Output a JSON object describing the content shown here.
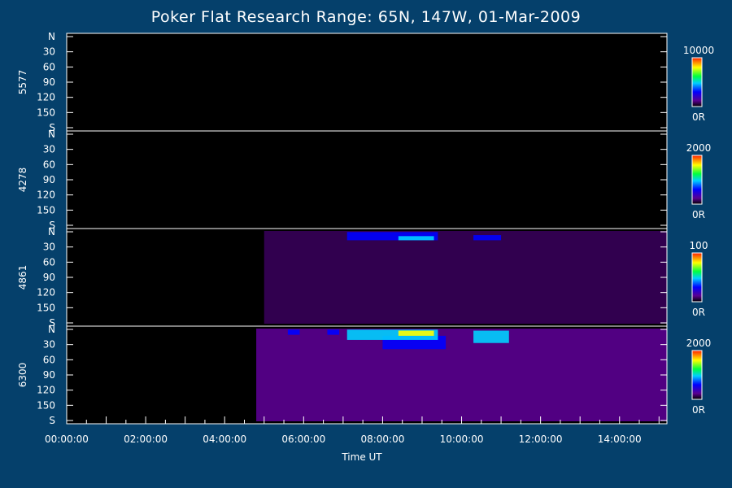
{
  "title": "Poker Flat Research Range: 65N, 147W, 01-Mar-2009",
  "chart_data": {
    "type": "heatmap",
    "title": "Poker Flat Research Range: 65N, 147W, 01-Mar-2009",
    "xlabel": "Time UT",
    "x_tick_labels": [
      "00:00:00",
      "02:00:00",
      "04:00:00",
      "06:00:00",
      "08:00:00",
      "10:00:00",
      "12:00:00",
      "14:00:00"
    ],
    "xlim_hours": [
      0,
      15.2
    ],
    "y_tick_labels": [
      "N",
      "30",
      "60",
      "90",
      "120",
      "150",
      "S"
    ],
    "ylim_deg": [
      0,
      180
    ],
    "panels": [
      {
        "wavelength": "5577",
        "colorbar_max": "10000",
        "colorbar_min": "0R",
        "activity": [
          {
            "t0": 8.0,
            "t1": 11.0,
            "lat0": 0,
            "lat1": 20,
            "intensity": 0.05
          }
        ]
      },
      {
        "wavelength": "4278",
        "colorbar_max": "2000",
        "colorbar_min": "0R",
        "activity": [
          {
            "t0": 7.0,
            "t1": 11.0,
            "lat0": 0,
            "lat1": 12,
            "intensity": 0.1
          },
          {
            "t0": 5.0,
            "t1": 15.2,
            "lat0": 0,
            "lat1": 180,
            "intensity": 0.04
          }
        ]
      },
      {
        "wavelength": "4861",
        "colorbar_max": "100",
        "colorbar_min": "0R",
        "activity": [
          {
            "t0": 7.1,
            "t1": 9.4,
            "lat0": 2,
            "lat1": 18,
            "intensity": 0.35
          },
          {
            "t0": 8.4,
            "t1": 9.3,
            "lat0": 10,
            "lat1": 18,
            "intensity": 0.5
          },
          {
            "t0": 10.3,
            "t1": 11.0,
            "lat0": 8,
            "lat1": 18,
            "intensity": 0.4
          },
          {
            "t0": 5.0,
            "t1": 15.2,
            "lat0": 0,
            "lat1": 180,
            "intensity": 0.12
          }
        ]
      },
      {
        "wavelength": "6300",
        "colorbar_max": "2000",
        "colorbar_min": "0R",
        "activity": [
          {
            "t0": 4.8,
            "t1": 15.2,
            "lat0": 0,
            "lat1": 180,
            "intensity": 0.25
          },
          {
            "t0": 5.6,
            "t1": 5.9,
            "lat0": 2,
            "lat1": 12,
            "intensity": 0.45
          },
          {
            "t0": 6.6,
            "t1": 6.9,
            "lat0": 2,
            "lat1": 12,
            "intensity": 0.4
          },
          {
            "t0": 7.1,
            "t1": 9.4,
            "lat0": 2,
            "lat1": 22,
            "intensity": 0.6
          },
          {
            "t0": 8.4,
            "t1": 9.3,
            "lat0": 4,
            "lat1": 14,
            "intensity": 0.95
          },
          {
            "t0": 8.0,
            "t1": 9.6,
            "lat0": 14,
            "lat1": 40,
            "intensity": 0.45
          },
          {
            "t0": 10.3,
            "t1": 11.2,
            "lat0": 4,
            "lat1": 28,
            "intensity": 0.55
          }
        ]
      }
    ]
  }
}
